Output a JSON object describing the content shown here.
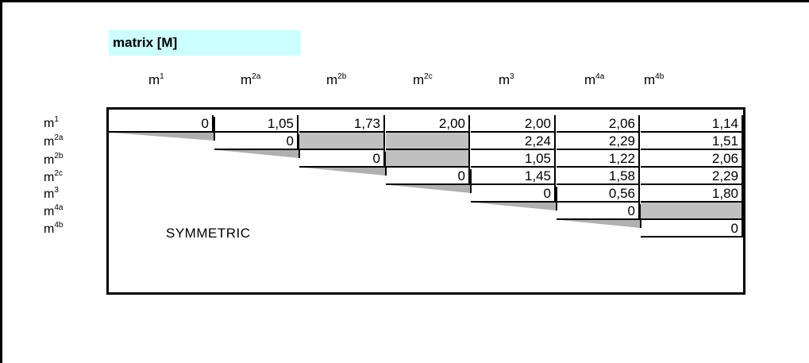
{
  "title": "matrix [M]",
  "columns": [
    {
      "base": "m",
      "sup": "1"
    },
    {
      "base": "m",
      "sup": "2a"
    },
    {
      "base": "m",
      "sup": "2b"
    },
    {
      "base": "m",
      "sup": "2c"
    },
    {
      "base": "m",
      "sup": "3"
    },
    {
      "base": "m",
      "sup": "4a"
    },
    {
      "base": "m",
      "sup": "4b"
    }
  ],
  "rows": [
    {
      "base": "m",
      "sup": "1"
    },
    {
      "base": "m",
      "sup": "2a"
    },
    {
      "base": "m",
      "sup": "2b"
    },
    {
      "base": "m",
      "sup": "2c"
    },
    {
      "base": "m",
      "sup": "3"
    },
    {
      "base": "m",
      "sup": "4a"
    },
    {
      "base": "m",
      "sup": "4b"
    }
  ],
  "matrix": [
    [
      "0",
      "1,05",
      "1,73",
      "2,00",
      "2,00",
      "2,06",
      "1,14"
    ],
    [
      null,
      "0",
      "",
      "",
      "2,24",
      "2,29",
      "1,51"
    ],
    [
      null,
      null,
      "0",
      "",
      "1,05",
      "1,22",
      "2,06"
    ],
    [
      null,
      null,
      null,
      "0",
      "1,45",
      "1,58",
      "2,29"
    ],
    [
      null,
      null,
      null,
      null,
      "0",
      "0,56",
      "1,80"
    ],
    [
      null,
      null,
      null,
      null,
      null,
      "0",
      ""
    ],
    [
      null,
      null,
      null,
      null,
      null,
      null,
      "0"
    ]
  ],
  "symmetric_label": "SYMMETRIC",
  "colors": {
    "title_bg": "#ccffff",
    "gray_cell": "#c0c0c0"
  }
}
